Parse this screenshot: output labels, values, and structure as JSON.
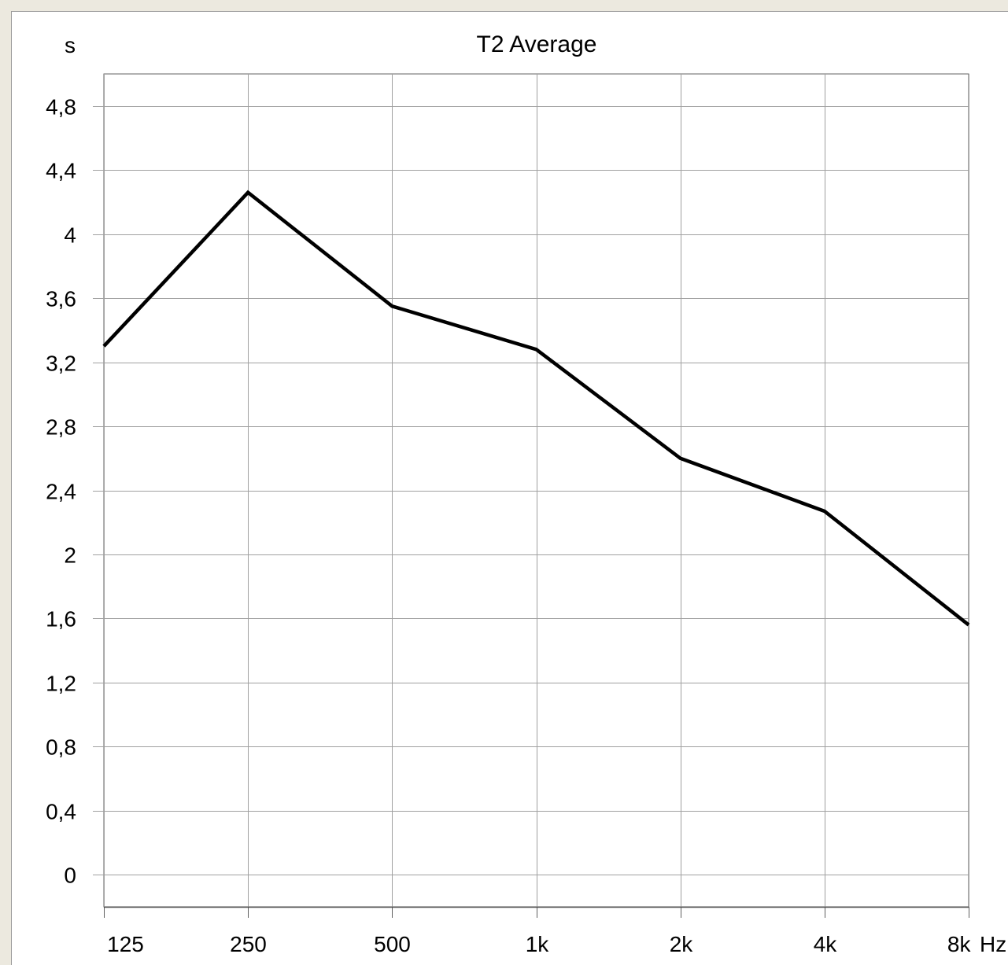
{
  "chart_data": {
    "type": "line",
    "title": "T2 Average",
    "ylabel": "s",
    "xunit": "Hz",
    "categories": [
      "125",
      "250",
      "500",
      "1k",
      "2k",
      "4k",
      "8k"
    ],
    "series": [
      {
        "values": [
          3.3,
          4.26,
          3.55,
          3.28,
          2.6,
          2.27,
          1.56
        ]
      }
    ],
    "ylim": [
      -0.2,
      5.0
    ],
    "yticks": [
      0,
      0.4,
      0.8,
      1.2,
      1.6,
      2,
      2.4,
      2.8,
      3.2,
      3.6,
      4,
      4.4,
      4.8
    ],
    "ytick_labels": [
      "0",
      "0,4",
      "0,8",
      "1,2",
      "1,6",
      "2",
      "2,4",
      "2,8",
      "3,2",
      "3,6",
      "4",
      "4,4",
      "4,8"
    ],
    "grid": true,
    "line_color": "#000000",
    "grid_color": "#a0a0a0"
  }
}
